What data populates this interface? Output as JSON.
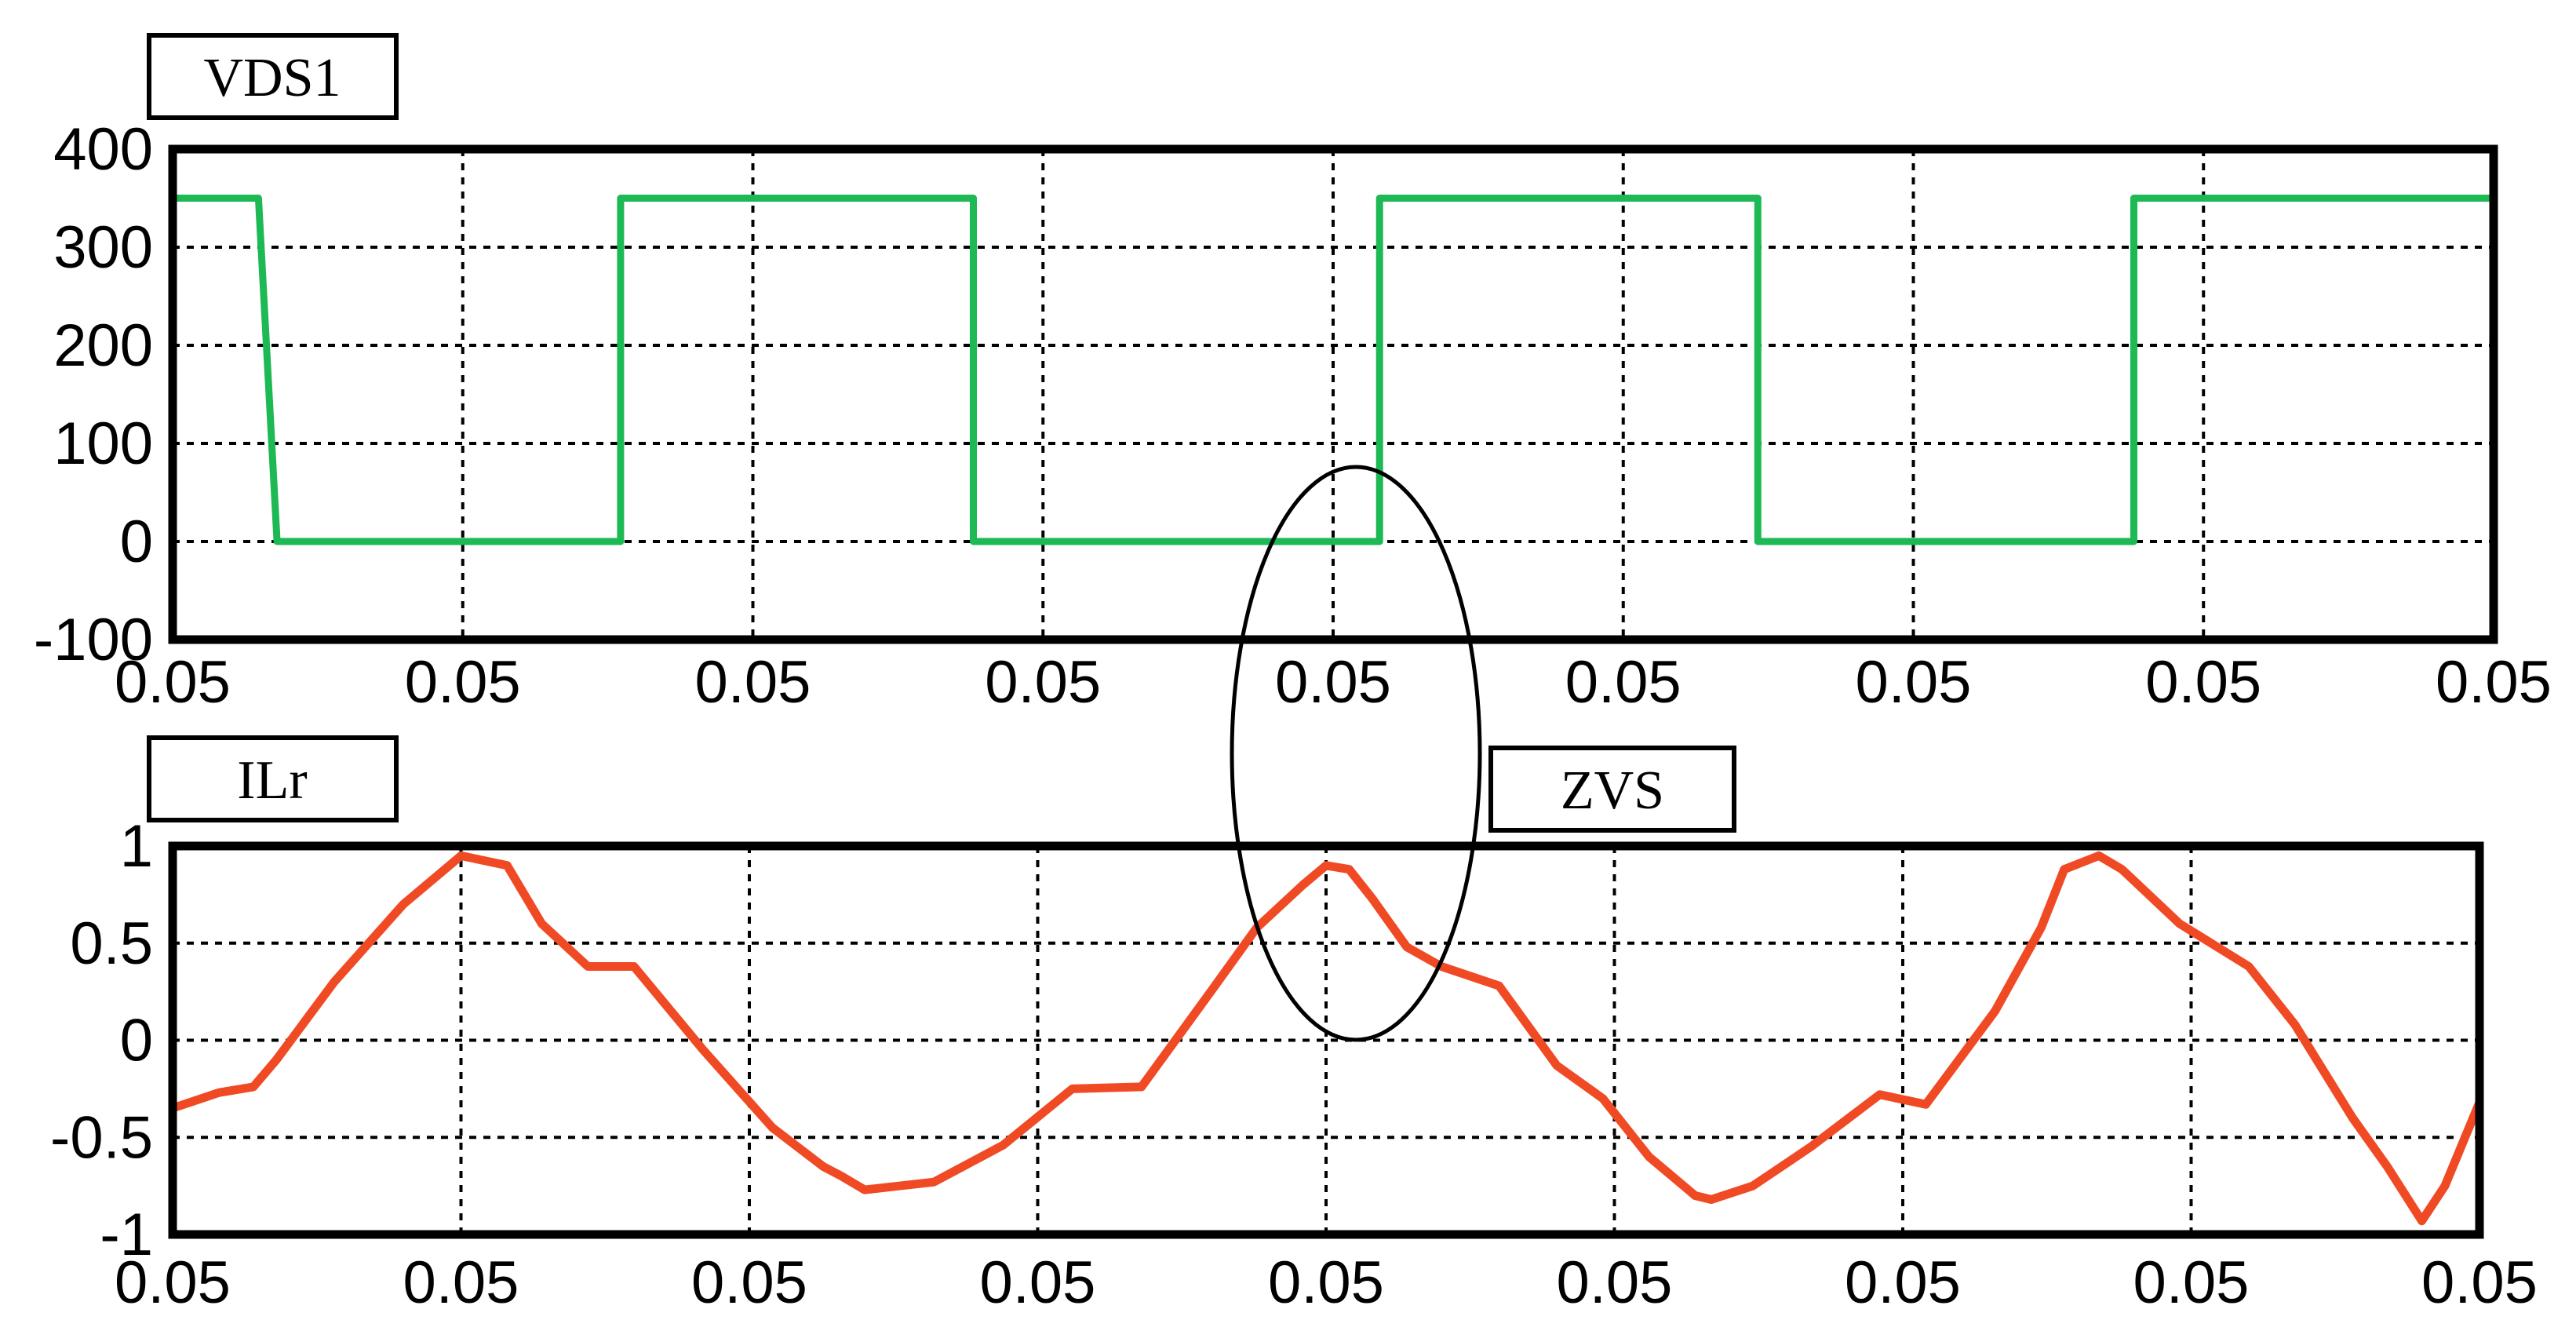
{
  "chart_data": [
    {
      "type": "line",
      "panel": "top",
      "label": "VDS1",
      "color": "#1db954",
      "ylim": [
        -100,
        400
      ],
      "yticks": [
        400,
        300,
        200,
        100,
        0,
        -100
      ],
      "xtick_labels": [
        "0.05",
        "0.05",
        "0.05",
        "0.05",
        "0.05",
        "0.05",
        "0.05",
        "0.05",
        "0.05"
      ],
      "grid": true,
      "series": [
        {
          "x": [
            0.0,
            0.037,
            0.045,
            0.193,
            0.193,
            0.345,
            0.345,
            0.52,
            0.52,
            0.683,
            0.683,
            0.845,
            0.845,
            1.0
          ],
          "y": [
            350,
            350,
            0,
            0,
            350,
            350,
            0,
            0,
            350,
            350,
            0,
            0,
            350,
            350
          ]
        }
      ]
    },
    {
      "type": "line",
      "panel": "bottom",
      "label": "ILr",
      "color": "#f04a25",
      "ylim": [
        -1,
        1
      ],
      "yticks": [
        "1",
        "0.5",
        "0",
        "-0.5",
        "-1"
      ],
      "xtick_labels": [
        "0.05",
        "0.05",
        "0.05",
        "0.05",
        "0.05",
        "0.05",
        "0.05",
        "0.05",
        "0.05"
      ],
      "grid": true,
      "annotation": "ZVS",
      "series": [
        {
          "x": [
            0.0,
            0.02,
            0.035,
            0.045,
            0.07,
            0.1,
            0.125,
            0.145,
            0.16,
            0.18,
            0.2,
            0.23,
            0.26,
            0.282,
            0.29,
            0.3,
            0.33,
            0.36,
            0.39,
            0.42,
            0.45,
            0.47,
            0.49,
            0.5,
            0.51,
            0.52,
            0.535,
            0.55,
            0.575,
            0.6,
            0.62,
            0.64,
            0.655,
            0.66,
            0.667,
            0.685,
            0.71,
            0.74,
            0.76,
            0.79,
            0.81,
            0.82,
            0.835,
            0.845,
            0.87,
            0.9,
            0.92,
            0.945,
            0.96,
            0.975,
            0.985,
            1.0
          ],
          "y": [
            -0.35,
            -0.27,
            -0.24,
            -0.1,
            0.3,
            0.7,
            0.95,
            0.9,
            0.6,
            0.38,
            0.38,
            -0.05,
            -0.45,
            -0.65,
            -0.7,
            -0.77,
            -0.73,
            -0.54,
            -0.25,
            -0.24,
            0.25,
            0.58,
            0.8,
            0.9,
            0.88,
            0.73,
            0.48,
            0.38,
            0.28,
            -0.13,
            -0.3,
            -0.6,
            -0.75,
            -0.8,
            -0.82,
            -0.75,
            -0.55,
            -0.28,
            -0.33,
            0.15,
            0.58,
            0.88,
            0.95,
            0.88,
            0.6,
            0.38,
            0.08,
            -0.4,
            -0.65,
            -0.93,
            -0.75,
            -0.32
          ]
        }
      ]
    }
  ]
}
